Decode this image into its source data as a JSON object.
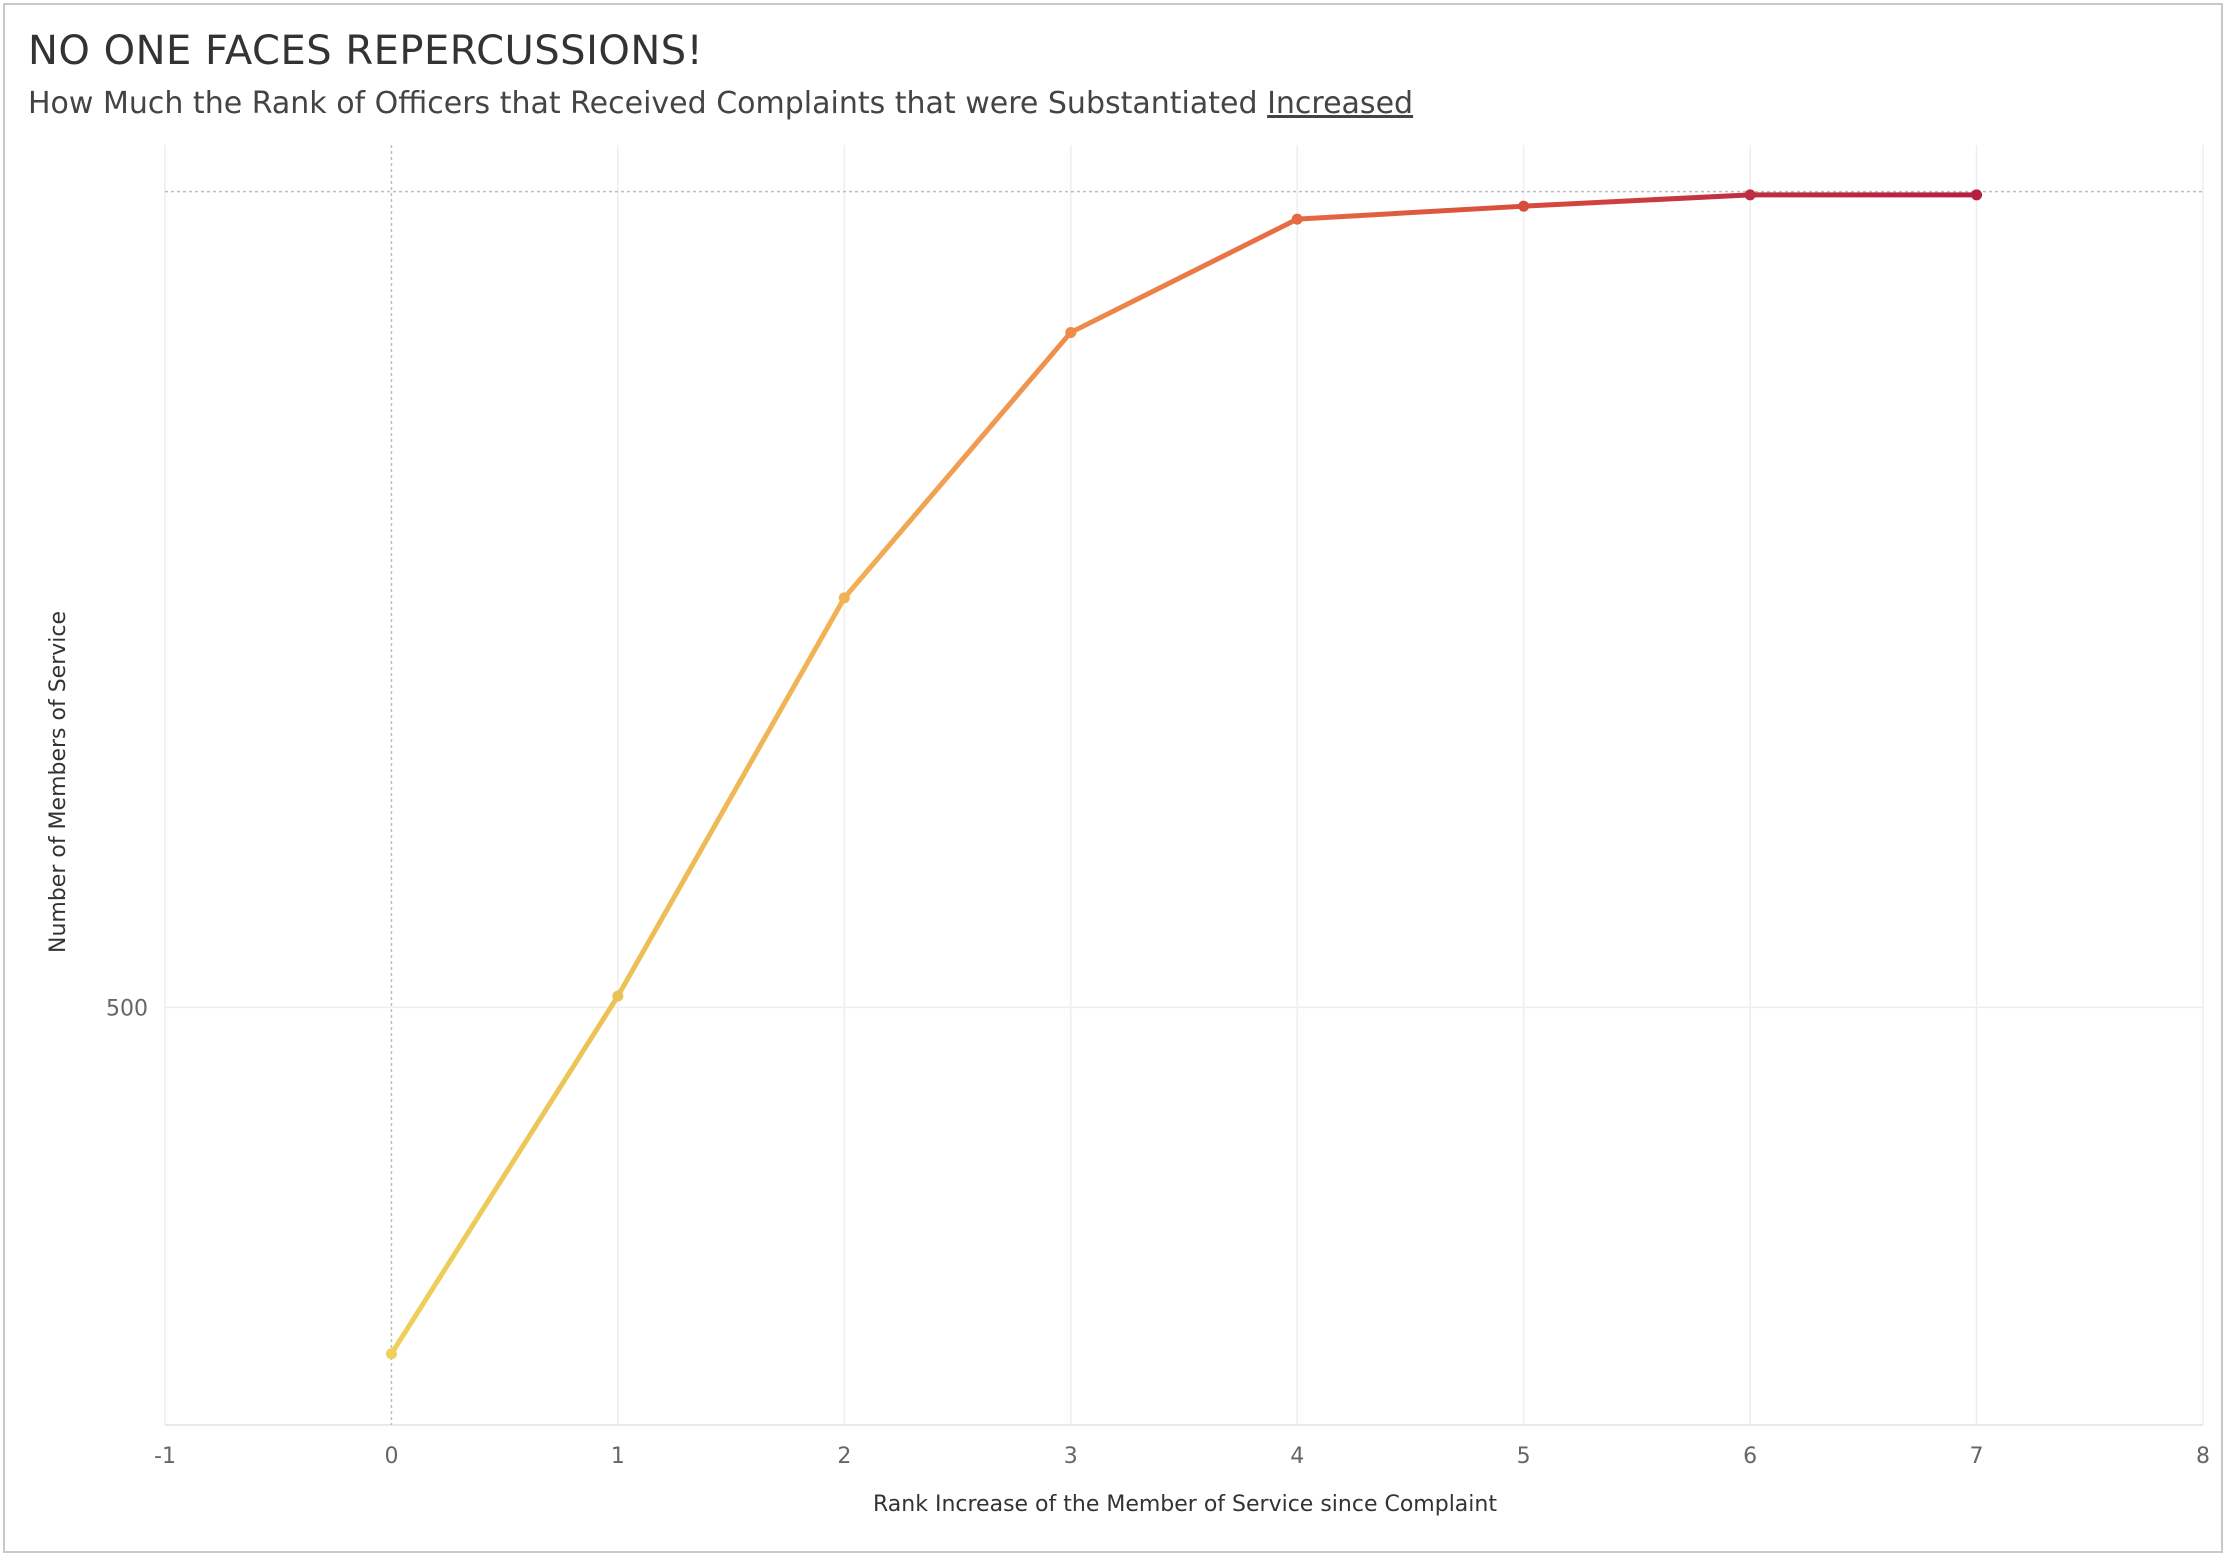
{
  "chart_data": {
    "type": "line",
    "title": "NO ONE FACES REPERCUSSIONS!",
    "subtitle_prefix": "How Much the Rank of Officers that Received Complaints that were Substantiated ",
    "subtitle_emphasis": "Increased",
    "xlabel": "Rank Increase of the Member of Service since Complaint",
    "ylabel": "Number of Members of Service",
    "x": [
      0,
      1,
      2,
      3,
      4,
      5,
      6,
      7
    ],
    "values": [
      286,
      507,
      753,
      917,
      987,
      995,
      1002,
      1002
    ],
    "xlim": [
      -1,
      8
    ],
    "ylim": [
      242,
      1005
    ],
    "x_ticks": [
      "-1",
      "0",
      "1",
      "2",
      "3",
      "4",
      "5",
      "6",
      "7",
      "8"
    ],
    "y_ticks": [
      {
        "value": 500,
        "label": "500"
      }
    ],
    "reference_lines": {
      "x": 0,
      "y": 1004
    },
    "grid": true,
    "colors": [
      "#edd15a",
      "#ecc157",
      "#f2b055",
      "#ef8c4c",
      "#e66a41",
      "#d84b3c",
      "#bd2e43",
      "#b5203f"
    ]
  }
}
